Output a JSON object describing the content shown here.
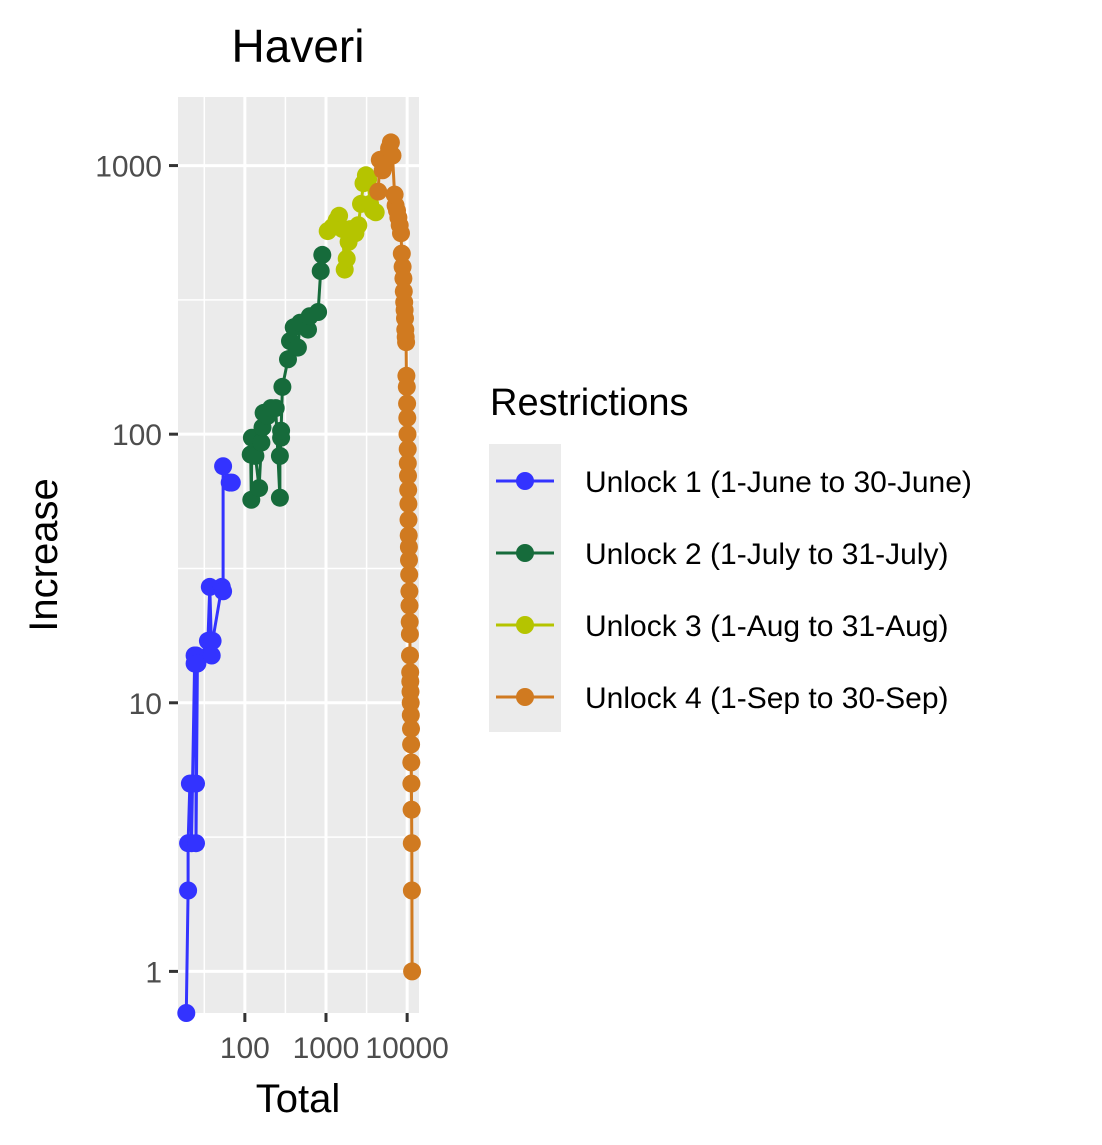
{
  "chart_data": {
    "type": "line",
    "title": "Haveri",
    "xlabel": "Total",
    "ylabel": "Increase",
    "x_scale": "log10",
    "y_scale": "log10",
    "xlim": [
      15,
      14000
    ],
    "ylim": [
      0.7,
      1800
    ],
    "x_ticks": [
      100,
      1000,
      10000
    ],
    "x_tick_labels": [
      "100",
      "1000",
      "10000"
    ],
    "y_ticks": [
      1,
      10,
      100,
      1000
    ],
    "y_tick_labels": [
      "1",
      "10",
      "100",
      "1000"
    ],
    "grid": true,
    "legend": {
      "title": "Restrictions",
      "placement": "right"
    },
    "series": [
      {
        "name": "Unlock 1 (1-June to 30-June)",
        "color": "#3333ff",
        "points": [
          [
            19,
            0.7
          ],
          [
            20,
            2
          ],
          [
            20,
            3
          ],
          [
            21,
            5
          ],
          [
            22,
            5
          ],
          [
            22,
            3
          ],
          [
            24,
            14
          ],
          [
            24,
            15
          ],
          [
            25,
            15
          ],
          [
            25,
            5
          ],
          [
            25,
            3
          ],
          [
            26,
            14
          ],
          [
            35,
            17
          ],
          [
            37,
            27
          ],
          [
            39,
            15
          ],
          [
            40,
            17
          ],
          [
            52,
            27
          ],
          [
            54,
            26
          ],
          [
            54,
            76
          ],
          [
            65,
            66
          ],
          [
            69,
            66
          ]
        ]
      },
      {
        "name": "Unlock 2 (1-July to 31-July)",
        "color": "#166b3b",
        "points": [
          [
            118,
            84
          ],
          [
            120,
            57
          ],
          [
            122,
            97
          ],
          [
            135,
            83
          ],
          [
            150,
            63
          ],
          [
            160,
            93
          ],
          [
            165,
            106
          ],
          [
            170,
            120
          ],
          [
            190,
            117
          ],
          [
            210,
            125
          ],
          [
            240,
            125
          ],
          [
            270,
            58
          ],
          [
            270,
            83
          ],
          [
            280,
            97
          ],
          [
            280,
            103
          ],
          [
            290,
            150
          ],
          [
            340,
            190
          ],
          [
            360,
            222
          ],
          [
            400,
            250
          ],
          [
            450,
            210
          ],
          [
            480,
            260
          ],
          [
            600,
            245
          ],
          [
            630,
            275
          ],
          [
            800,
            285
          ],
          [
            860,
            405
          ],
          [
            900,
            465
          ]
        ]
      },
      {
        "name": "Unlock 3 (1-Aug to 31-Aug)",
        "color": "#b5c400",
        "points": [
          [
            1050,
            570
          ],
          [
            1200,
            590
          ],
          [
            1350,
            625
          ],
          [
            1450,
            650
          ],
          [
            1600,
            580
          ],
          [
            1700,
            410
          ],
          [
            1800,
            450
          ],
          [
            1900,
            520
          ],
          [
            2000,
            580
          ],
          [
            2300,
            560
          ],
          [
            2500,
            600
          ],
          [
            2700,
            720
          ],
          [
            2900,
            860
          ],
          [
            3100,
            920
          ],
          [
            3300,
            890
          ],
          [
            3500,
            720
          ],
          [
            3800,
            680
          ],
          [
            4100,
            670
          ]
        ]
      },
      {
        "name": "Unlock 4 (1-Sep to 30-Sep)",
        "color": "#d07a20",
        "points": [
          [
            4400,
            800
          ],
          [
            4600,
            1050
          ],
          [
            5000,
            960
          ],
          [
            5300,
            1000
          ],
          [
            5600,
            1080
          ],
          [
            6000,
            1160
          ],
          [
            6300,
            1220
          ],
          [
            6600,
            1090
          ],
          [
            7000,
            780
          ],
          [
            7200,
            710
          ],
          [
            7500,
            680
          ],
          [
            7800,
            640
          ],
          [
            8100,
            600
          ],
          [
            8400,
            560
          ],
          [
            8600,
            470
          ],
          [
            8800,
            420
          ],
          [
            9000,
            380
          ],
          [
            9100,
            340
          ],
          [
            9200,
            310
          ],
          [
            9300,
            290
          ],
          [
            9400,
            270
          ],
          [
            9500,
            245
          ],
          [
            9600,
            230
          ],
          [
            9700,
            220
          ],
          [
            9800,
            165
          ],
          [
            9900,
            150
          ],
          [
            10000,
            130
          ],
          [
            10050,
            115
          ],
          [
            10100,
            100
          ],
          [
            10150,
            88
          ],
          [
            10200,
            78
          ],
          [
            10250,
            70
          ],
          [
            10300,
            62
          ],
          [
            10350,
            55
          ],
          [
            10400,
            48
          ],
          [
            10450,
            42
          ],
          [
            10500,
            38
          ],
          [
            10550,
            34
          ],
          [
            10600,
            30
          ],
          [
            10650,
            26
          ],
          [
            10700,
            23
          ],
          [
            10750,
            20
          ],
          [
            10800,
            18
          ],
          [
            10850,
            15
          ],
          [
            10900,
            13
          ],
          [
            10950,
            12
          ],
          [
            11000,
            11
          ],
          [
            11050,
            10
          ],
          [
            11100,
            9
          ],
          [
            11150,
            8
          ],
          [
            11200,
            7
          ],
          [
            11250,
            6
          ],
          [
            11300,
            5
          ],
          [
            11350,
            4
          ],
          [
            11400,
            3
          ],
          [
            11450,
            2
          ],
          [
            11500,
            1
          ]
        ]
      }
    ]
  }
}
